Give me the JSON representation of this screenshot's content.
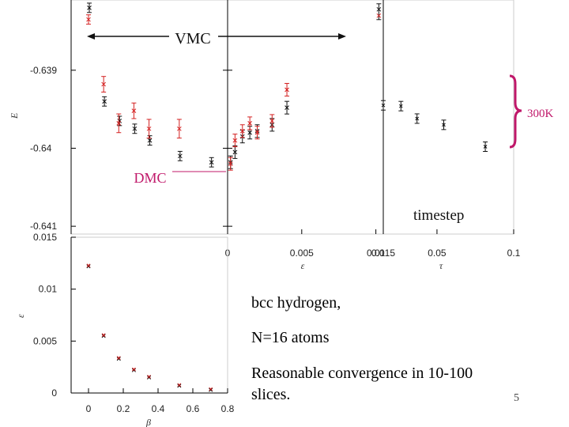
{
  "colors": {
    "red": "#d42020",
    "black": "#111111",
    "annotation": "#c0186a",
    "axis": "#000000",
    "grid": "#cccccc"
  },
  "annotations": {
    "vmc": "VMC",
    "dmc": "DMC",
    "temp": "300K",
    "timestep": "timestep"
  },
  "notes": {
    "line1": "bcc hydrogen,",
    "line2": "N=16 atoms",
    "line3": "Reasonable convergence in 10-100",
    "line4": "slices."
  },
  "slide_number": "5",
  "chart_data": [
    {
      "id": "energy-vs-beta",
      "type": "scatter",
      "ylabel": "E",
      "xlabel": "",
      "xlim": [
        -0.1,
        0.8
      ],
      "ylim": [
        -0.6411,
        -0.6381
      ],
      "yticks": [
        -0.639,
        -0.64,
        -0.641
      ],
      "ytick_labels": [
        "-0.639",
        "-0.64",
        "-0.641"
      ],
      "series": [
        {
          "name": "black",
          "x": [
            0,
            0.087,
            0.174,
            0.261,
            0.348,
            0.522,
            0.703
          ],
          "y": [
            -0.6382,
            -0.6394,
            -0.63965,
            -0.63975,
            -0.6399,
            -0.6401,
            -0.64018
          ],
          "err": [
            6e-05,
            6e-05,
            6e-05,
            6e-05,
            6e-05,
            6e-05,
            6e-05
          ]
        },
        {
          "name": "red",
          "x": [
            0,
            0.087,
            0.174,
            0.261,
            0.348,
            0.522
          ],
          "y": [
            -0.63835,
            -0.63918,
            -0.63968,
            -0.63952,
            -0.63975,
            -0.63975
          ],
          "err": [
            6e-05,
            0.0001,
            0.00012,
            0.0001,
            0.00012,
            0.00012
          ]
        }
      ]
    },
    {
      "id": "energy-vs-epsilon",
      "type": "scatter",
      "xlabel": "ε",
      "xlim": [
        0,
        0.0105
      ],
      "xticks": [
        0,
        0.005,
        0.01
      ],
      "xtick_labels": [
        "0",
        "0.005",
        "0.01"
      ],
      "ylim": [
        -0.6411,
        -0.6381
      ],
      "series": [
        {
          "name": "black",
          "x": [
            0.0002,
            0.0005,
            0.001,
            0.0015,
            0.002,
            0.003,
            0.004
          ],
          "y": [
            -0.64018,
            -0.64005,
            -0.63985,
            -0.6398,
            -0.63978,
            -0.6397,
            -0.63948
          ]
        },
        {
          "name": "red",
          "x": [
            0.0002,
            0.0005,
            0.001,
            0.0015,
            0.002,
            0.003,
            0.004
          ],
          "y": [
            -0.6402,
            -0.6399,
            -0.63978,
            -0.63968,
            -0.6398,
            -0.63965,
            -0.63925
          ]
        },
        {
          "name": "vmc-point",
          "x": [
            0.0102
          ],
          "y": [
            -0.63825
          ]
        }
      ]
    },
    {
      "id": "energy-vs-tau",
      "type": "scatter",
      "xlabel": "τ",
      "xlim": [
        0.015,
        0.1
      ],
      "xticks": [
        0.015,
        0.05,
        0.1
      ],
      "xtick_labels": [
        "0.015",
        "0.05",
        "0.1"
      ],
      "ylim": [
        -0.6411,
        -0.6381
      ],
      "series": [
        {
          "name": "black",
          "x": [
            0.015,
            0.0265,
            0.037,
            0.0544,
            0.0815
          ],
          "y": [
            -0.63945,
            -0.63946,
            -0.63962,
            -0.6397,
            -0.63998
          ]
        }
      ]
    },
    {
      "id": "epsilon-vs-beta",
      "type": "scatter",
      "ylabel": "ε",
      "xlabel": "β",
      "xlim": [
        -0.1,
        0.8
      ],
      "ylim": [
        0,
        0.015
      ],
      "xticks": [
        0,
        0.2,
        0.4,
        0.6,
        0.8
      ],
      "xtick_labels": [
        "0",
        "0.2",
        "0.4",
        "0.6",
        "0.8"
      ],
      "yticks": [
        0,
        0.005,
        0.01,
        0.015
      ],
      "ytick_labels": [
        "0",
        "0.005",
        "0.01",
        "0.015"
      ],
      "series": [
        {
          "name": "points",
          "x": [
            0,
            0.087,
            0.174,
            0.261,
            0.348,
            0.522,
            0.703
          ],
          "y": [
            0.0122,
            0.0055,
            0.0033,
            0.0022,
            0.0015,
            0.0007,
            0.0003
          ]
        }
      ]
    }
  ]
}
